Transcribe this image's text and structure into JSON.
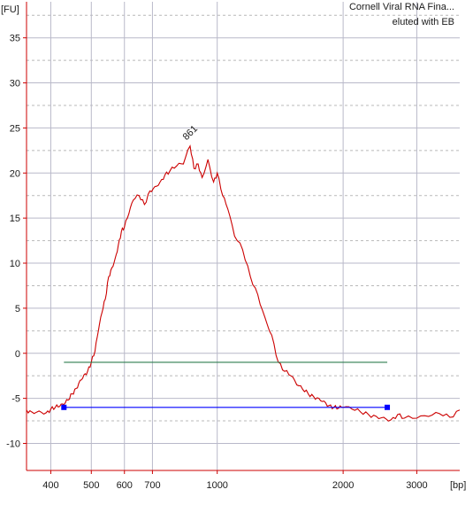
{
  "chart_data": {
    "type": "line",
    "title_lines": [
      "Cornell Viral RNA Fina...",
      "eluted with EB"
    ],
    "y_unit_label": "[FU]",
    "x_unit_label": "[bp]",
    "x_scale": "log",
    "xlim": [
      350,
      3800
    ],
    "ylim": [
      -13,
      39
    ],
    "y_ticks": [
      -10,
      -5,
      0,
      5,
      10,
      15,
      20,
      25,
      30,
      35
    ],
    "x_ticks": [
      400,
      500,
      600,
      700,
      1000,
      2000,
      3000
    ],
    "x_tick_labels": [
      "400",
      "500",
      "600",
      "700",
      "1000",
      "2000",
      "3000"
    ],
    "y_tick_labels": [
      "-10",
      "-5",
      "0",
      "5",
      "10",
      "15",
      "20",
      "25",
      "30",
      "35"
    ],
    "grid": true,
    "peak": {
      "x": 861,
      "y": 23,
      "label": "861"
    },
    "series": [
      {
        "color": "#cc0000",
        "x": [
          350,
          360,
          375,
          390,
          400,
          410,
          420,
          430,
          440,
          450,
          460,
          470,
          480,
          490,
          500,
          510,
          520,
          530,
          540,
          550,
          560,
          570,
          580,
          590,
          600,
          615,
          630,
          650,
          670,
          690,
          710,
          730,
          750,
          770,
          800,
          830,
          861,
          880,
          900,
          920,
          950,
          980,
          1000,
          1030,
          1060,
          1100,
          1150,
          1200,
          1250,
          1300,
          1350,
          1400,
          1450,
          1500,
          1550,
          1600,
          1650,
          1700,
          1750,
          1800,
          1850,
          1900,
          1950,
          2000,
          2100,
          2200,
          2300,
          2400,
          2500,
          2600,
          2700,
          2800,
          3000,
          3200,
          3400,
          3600,
          3800
        ],
        "y": [
          -6.3,
          -6.5,
          -6.4,
          -6.6,
          -6.2,
          -6.0,
          -5.9,
          -5.7,
          -5.2,
          -4.5,
          -3.9,
          -3.0,
          -2.4,
          -2.0,
          -1.0,
          0.2,
          2.5,
          4.5,
          6.0,
          8.5,
          9.5,
          10.5,
          12.0,
          13.5,
          14.0,
          15.5,
          17.0,
          17.5,
          16.5,
          18.0,
          18.5,
          19.0,
          19.8,
          20.2,
          20.8,
          21.0,
          23.0,
          20.5,
          21.0,
          19.5,
          21.5,
          19.0,
          20.0,
          17.5,
          16.0,
          13.0,
          11.5,
          8.5,
          6.5,
          4.0,
          2.0,
          -1.0,
          -2.0,
          -2.5,
          -3.5,
          -4.0,
          -4.5,
          -4.8,
          -5.0,
          -5.3,
          -5.8,
          -6.0,
          -6.1,
          -6.0,
          -6.2,
          -6.5,
          -6.8,
          -7.0,
          -7.1,
          -7.4,
          -6.8,
          -7.2,
          -7.2,
          -7.0,
          -6.7,
          -7.1,
          -6.3
        ]
      }
    ],
    "region": {
      "x_start": 430,
      "x_end": 2550,
      "y": -6.0,
      "color": "#0000ff"
    },
    "threshold_line": {
      "x_start": 430,
      "x_end": 2550,
      "y": -1.0,
      "color": "#2e7d4f"
    }
  }
}
